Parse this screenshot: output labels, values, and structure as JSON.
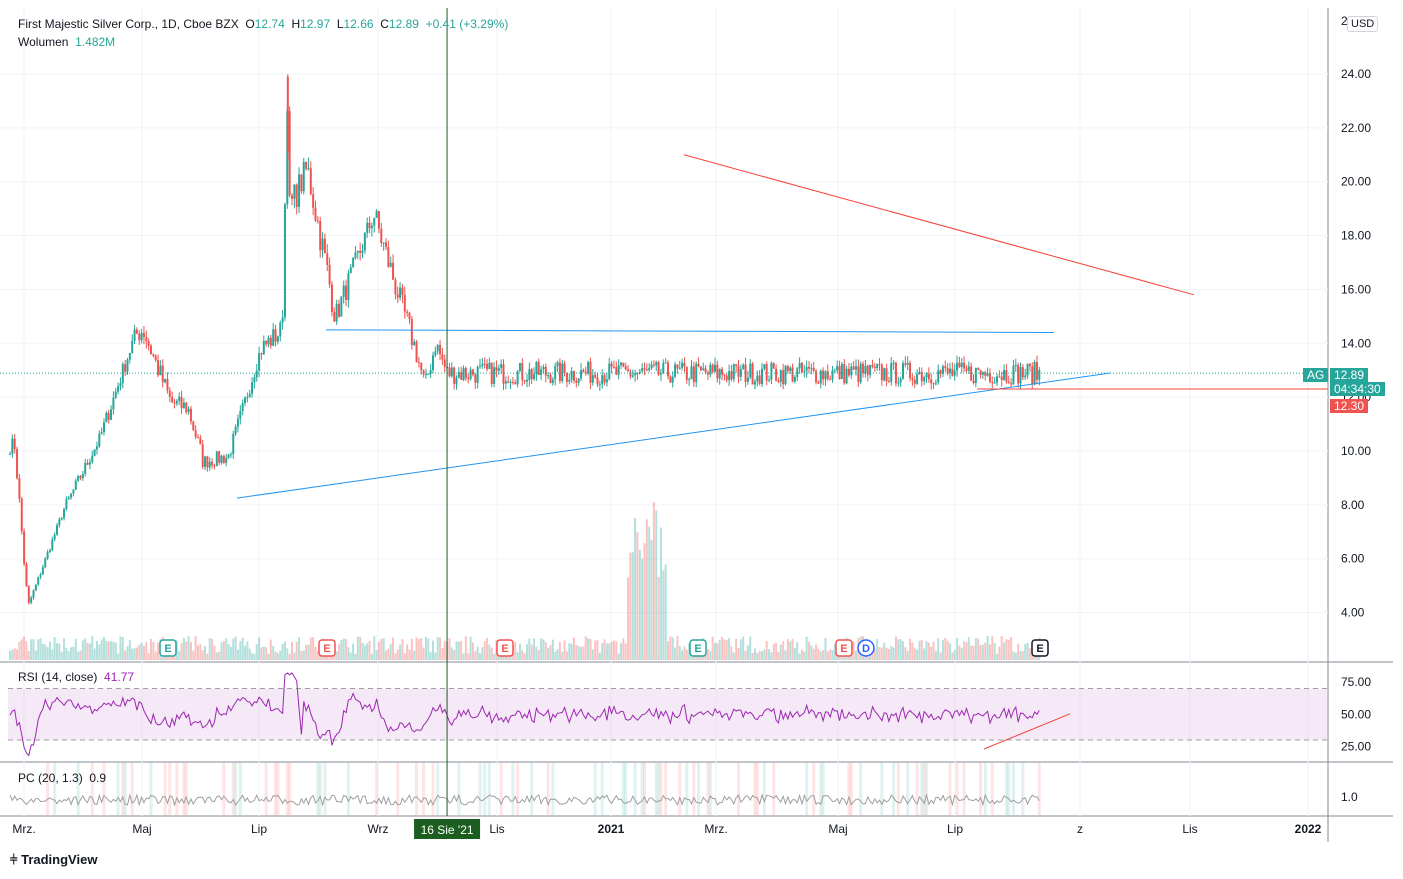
{
  "header": {
    "symbol_title": "First Majestic Silver Corp., 1D, Cboe BZX",
    "o_label": "O",
    "o_value": "12.74",
    "h_label": "H",
    "h_value": "12.97",
    "l_label": "L",
    "l_value": "12.66",
    "c_label": "C",
    "c_value": "12.89",
    "change": "+0.41 (+3.29%)",
    "volume_label": "Wolumen",
    "volume_value": "1.482M"
  },
  "currency": "USD",
  "price_axis": {
    "ticks": [
      "24.00",
      "22.00",
      "20.00",
      "18.00",
      "16.00",
      "14.00",
      "12.00",
      "10.00",
      "8.00",
      "6.00",
      "4.00"
    ],
    "tick_values": [
      24,
      22,
      20,
      18,
      16,
      14,
      12,
      10,
      8,
      6,
      4
    ],
    "top_partial": "2("
  },
  "rsi_panel": {
    "label": "RSI (14, close)",
    "value": "41.77",
    "ticks": [
      "75.00",
      "50.00",
      "25.00"
    ],
    "tick_values": [
      75,
      50,
      25
    ],
    "band": [
      30,
      70
    ]
  },
  "pc_panel": {
    "label": "PC (20, 1.3)",
    "value": "0.9",
    "tick": "1.0"
  },
  "time_axis": {
    "labels": [
      "Mrz.",
      "Maj",
      "Lip",
      "Wrz",
      "Lis",
      "2021",
      "Mrz.",
      "Maj",
      "Lip",
      "z",
      "Lis",
      "2022"
    ],
    "cursor_label": "16 Sie '21"
  },
  "price_tags": {
    "symbol": "AG",
    "last": "12.89",
    "countdown": "04:34:30",
    "level": "12.30"
  },
  "events": [
    "E",
    "E",
    "E",
    "E",
    "E",
    "D",
    "E"
  ],
  "brand": "TradingView",
  "colors": {
    "up": "#26a69a",
    "down": "#ef5350",
    "rsi": "#9c27b0",
    "trend_blue": "#2196f3",
    "trend_red": "#f44336",
    "cursor": "#1b5e20"
  },
  "chart_data": {
    "type": "candlestick",
    "symbol": "AG",
    "interval": "1D",
    "key_points": [
      {
        "date": "2020-03-02",
        "close": 10.2
      },
      {
        "date": "2020-03-18",
        "close": 4.2
      },
      {
        "date": "2020-05-01",
        "close": 7.8
      },
      {
        "date": "2020-06-15",
        "close": 10.5
      },
      {
        "date": "2020-07-28",
        "close": 14.3
      },
      {
        "date": "2020-08-07",
        "close": 14.5
      },
      {
        "date": "2020-09-10",
        "close": 11.8
      },
      {
        "date": "2020-10-01",
        "close": 11.6
      },
      {
        "date": "2020-10-20",
        "close": 9.6
      },
      {
        "date": "2020-11-20",
        "close": 9.8
      },
      {
        "date": "2020-12-30",
        "close": 13.8
      },
      {
        "date": "2021-01-25",
        "close": 14.5
      },
      {
        "date": "2021-02-01",
        "close": 23.9
      },
      {
        "date": "2021-02-03",
        "close": 19.0
      },
      {
        "date": "2021-02-25",
        "close": 20.5
      },
      {
        "date": "2021-04-01",
        "close": 15.0
      },
      {
        "date": "2021-05-18",
        "close": 18.8
      },
      {
        "date": "2021-06-15",
        "close": 16.0
      },
      {
        "date": "2021-07-06",
        "close": 14.0
      },
      {
        "date": "2021-07-20",
        "close": 12.4
      },
      {
        "date": "2021-08-02",
        "close": 14.0
      },
      {
        "date": "2021-08-16",
        "close": 12.89
      }
    ],
    "last": 12.89,
    "horizontal_level": 12.3,
    "ylim": [
      3,
      25
    ],
    "rsi_last": 41.77,
    "pc_last": 0.9,
    "volume_last": "1.482M"
  }
}
